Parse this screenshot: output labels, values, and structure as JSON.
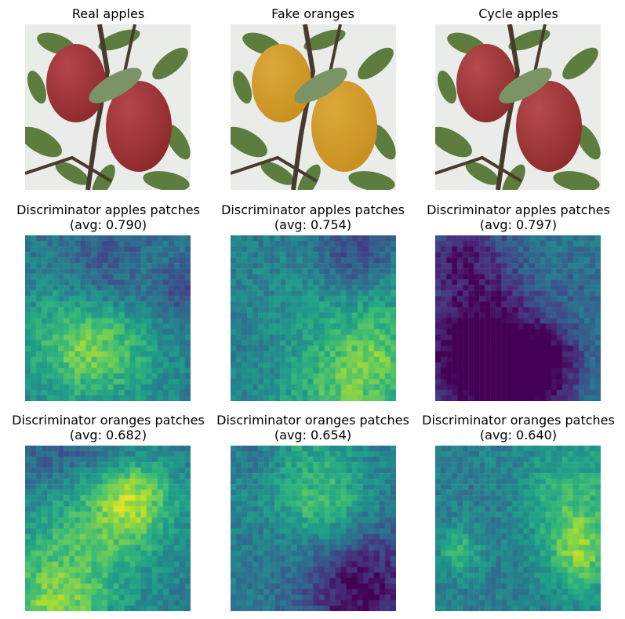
{
  "figure": {
    "rows": [
      {
        "cells": [
          {
            "title_line1": "Real apples",
            "title_line2": "",
            "kind": "photo",
            "fruit_color": "#8d2a2c",
            "fruit_highlight": "#b5454a"
          },
          {
            "title_line1": "Fake oranges",
            "title_line2": "",
            "kind": "photo",
            "fruit_color": "#c8901f",
            "fruit_highlight": "#dba83b"
          },
          {
            "title_line1": "Cycle apples",
            "title_line2": "",
            "kind": "photo",
            "fruit_color": "#8e2c2d",
            "fruit_highlight": "#b64a4c"
          }
        ]
      },
      {
        "cells": [
          {
            "title_line1": "Discriminator apples patches",
            "title_line2": "(avg: 0.790)",
            "kind": "heatmap",
            "seed": 11
          },
          {
            "title_line1": "Discriminator apples patches",
            "title_line2": "(avg: 0.754)",
            "kind": "heatmap",
            "seed": 12
          },
          {
            "title_line1": "Discriminator apples patches",
            "title_line2": "(avg: 0.797)",
            "kind": "heatmap",
            "seed": 13
          }
        ]
      },
      {
        "cells": [
          {
            "title_line1": "Discriminator oranges patches",
            "title_line2": "(avg: 0.682)",
            "kind": "heatmap",
            "seed": 21
          },
          {
            "title_line1": "Discriminator oranges patches",
            "title_line2": "(avg: 0.654)",
            "kind": "heatmap",
            "seed": 22
          },
          {
            "title_line1": "Discriminator oranges patches",
            "title_line2": "(avg: 0.640)",
            "kind": "heatmap",
            "seed": 23
          }
        ]
      }
    ],
    "colormap": "viridis"
  }
}
